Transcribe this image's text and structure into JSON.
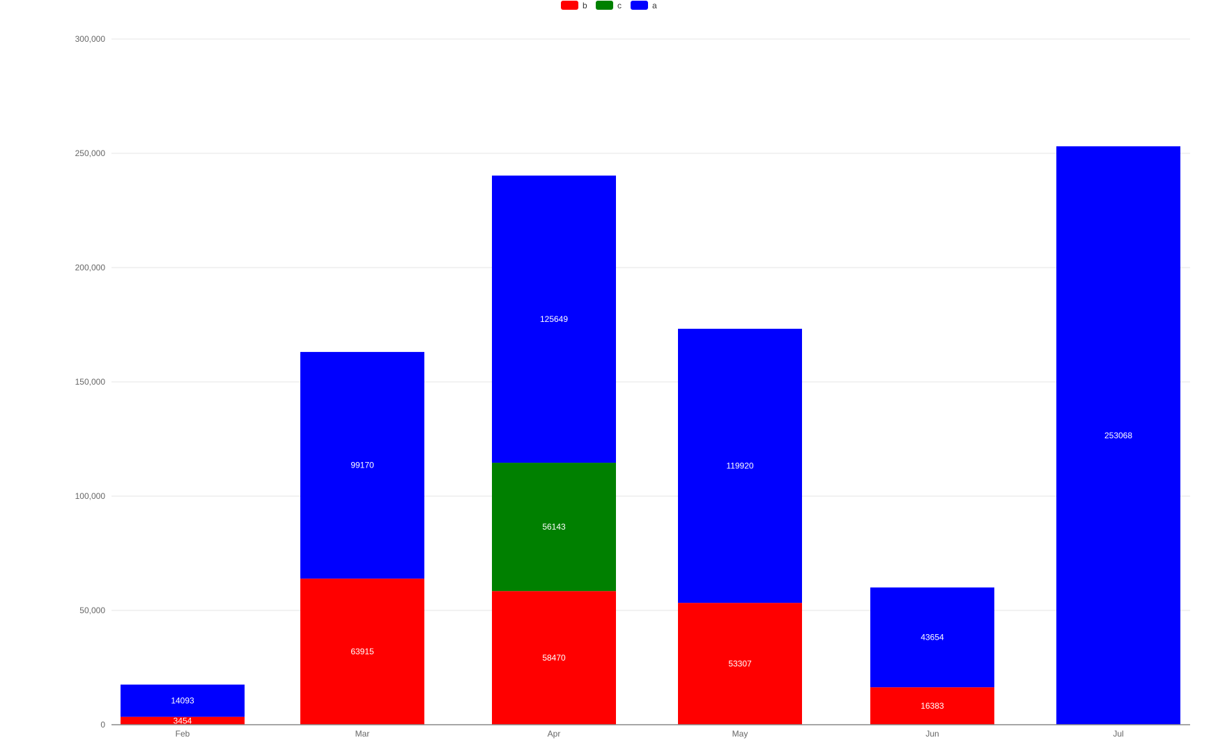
{
  "chart_data": {
    "type": "bar",
    "stacked": true,
    "categories": [
      "Feb",
      "Mar",
      "Apr",
      "May",
      "Jun",
      "Jul"
    ],
    "series": [
      {
        "name": "b",
        "color": "#ff0000",
        "values": [
          3454,
          63915,
          58470,
          53307,
          16383,
          0
        ]
      },
      {
        "name": "c",
        "color": "#008000",
        "values": [
          0,
          0,
          56143,
          0,
          0,
          0
        ]
      },
      {
        "name": "a",
        "color": "#0000ff",
        "values": [
          14093,
          99170,
          125649,
          119920,
          43654,
          253068
        ]
      }
    ],
    "ylim": [
      0,
      300000
    ],
    "yticks": [
      0,
      50000,
      100000,
      150000,
      200000,
      250000,
      300000
    ],
    "ytick_labels": [
      "0",
      "50,000",
      "100,000",
      "150,000",
      "200,000",
      "250,000",
      "300,000"
    ],
    "legend_position": "top-center",
    "grid": true,
    "title": "",
    "xlabel": "",
    "ylabel": ""
  }
}
